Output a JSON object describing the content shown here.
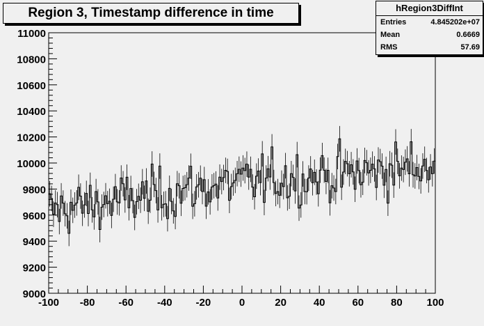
{
  "chart_data": {
    "type": "histogram",
    "title": "Region 3, Timestamp difference in time",
    "xlabel": "",
    "ylabel": "",
    "xlim": [
      -100,
      100
    ],
    "ylim": [
      9000,
      11000
    ],
    "x_ticks": [
      "-100",
      "-80",
      "-60",
      "-40",
      "-20",
      "0",
      "20",
      "40",
      "60",
      "80",
      "100"
    ],
    "y_ticks": [
      "9000",
      "9200",
      "9400",
      "9600",
      "9800",
      "10000",
      "10200",
      "10400",
      "10600",
      "10800",
      "11000"
    ],
    "grid": false,
    "legend": "none",
    "bins": 200,
    "trend": {
      "x": [
        -100,
        -60,
        -20,
        0,
        20,
        60,
        100
      ],
      "y": [
        9630,
        9720,
        9810,
        9850,
        9880,
        9920,
        9990
      ]
    },
    "bin_scatter_rms": 100,
    "error_bar": 98
  },
  "stats": {
    "name": "hRegion3DiffInt",
    "rows": [
      {
        "label": "Entries",
        "value": "4.845202e+07"
      },
      {
        "label": "Mean",
        "value": "0.6669"
      },
      {
        "label": "RMS",
        "value": "57.69"
      }
    ]
  },
  "colors": {
    "background": "#f0f0f0",
    "frame": "#000000",
    "line": "#000000"
  }
}
